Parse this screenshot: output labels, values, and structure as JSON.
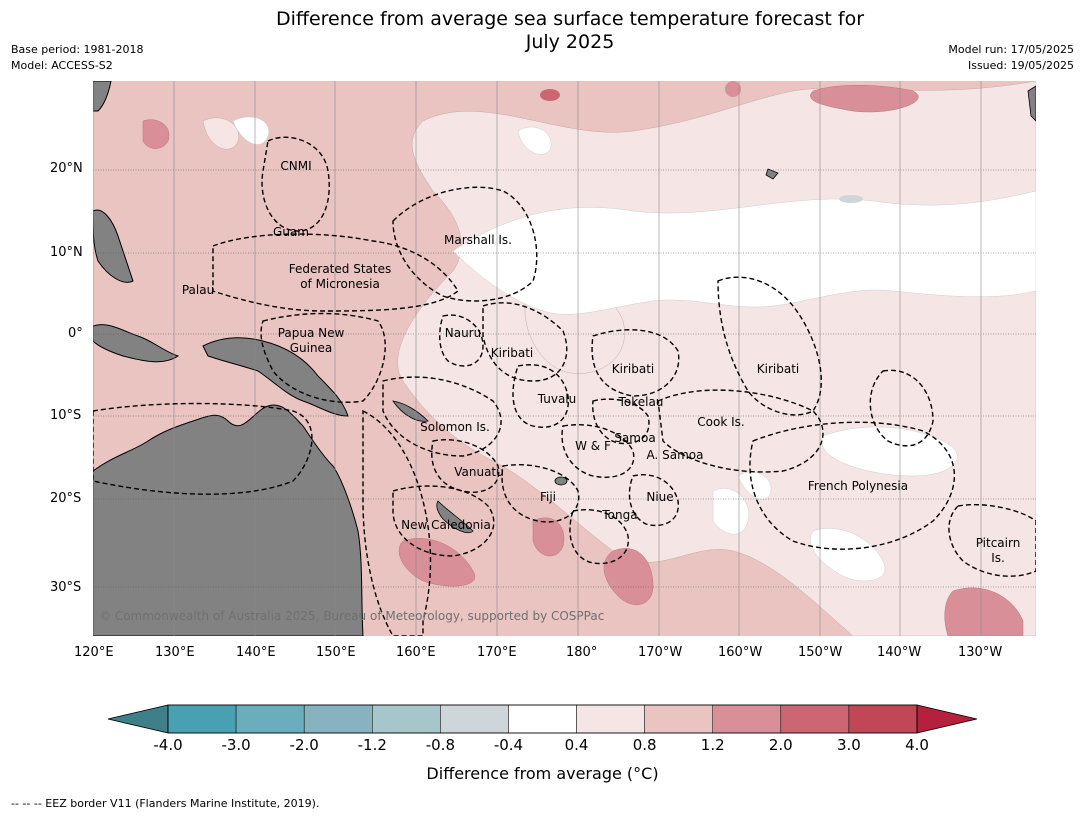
{
  "title_line1": "Difference from average sea surface temperature forecast for",
  "title_line2": "July 2025",
  "meta_left": [
    "Base period: 1981-2018",
    "Model: ACCESS-S2"
  ],
  "meta_right": [
    "Model run: 17/05/2025",
    "Issued: 19/05/2025"
  ],
  "copyright": "© Commonwealth of Australia 2025, Bureau of Meteorology, supported by COSPPac",
  "footnote": "--  --  -- EEZ border V11 (Flanders Marine Institute, 2019).",
  "colors": {
    "land": "#828282",
    "ocean_0_4_0_8": "#f5e6e5",
    "ocean_0_8_1_2": "#e9c4c1",
    "ocean_1_2_2_0": "#d98f98",
    "ocean_2_0_3_0": "#cc6672",
    "ocean_3_0_4_0": "#c14756",
    "cool_minus_0_8": "#cfd6d9"
  },
  "axes": {
    "lon_ticks": [
      "120°E",
      "130°E",
      "140°E",
      "150°E",
      "160°E",
      "170°E",
      "180°",
      "170°W",
      "160°W",
      "150°W",
      "140°W",
      "130°W"
    ],
    "lat_ticks": [
      "20°N",
      "10°N",
      "0°",
      "10°S",
      "20°S",
      "30°S"
    ]
  },
  "region_labels": [
    {
      "text": "CNMI"
    },
    {
      "text": "Guam"
    },
    {
      "text": "Marshall Is."
    },
    {
      "text": "Federated States"
    },
    {
      "text": "of Micronesia"
    },
    {
      "text": "Palau"
    },
    {
      "text": "Papua New"
    },
    {
      "text": "Guinea"
    },
    {
      "text": "Nauru"
    },
    {
      "text": "Kiribati"
    },
    {
      "text": "Kiribati"
    },
    {
      "text": "Kiribati"
    },
    {
      "text": "Tuvalu"
    },
    {
      "text": "Tokelau"
    },
    {
      "text": "Solomon Is."
    },
    {
      "text": "Cook Is."
    },
    {
      "text": "Samoa"
    },
    {
      "text": "W & F"
    },
    {
      "text": "A. Samoa"
    },
    {
      "text": "Vanuatu"
    },
    {
      "text": "Fiji"
    },
    {
      "text": "Niue"
    },
    {
      "text": "French Polynesia"
    },
    {
      "text": "Tonga"
    },
    {
      "text": "New Caledonia"
    },
    {
      "text": "Pitcairn"
    },
    {
      "text": "Is."
    }
  ],
  "colorbar": {
    "title": "Difference from average (°C)",
    "labels": [
      "-4.0",
      "-3.0",
      "-2.0",
      "-1.2",
      "-0.8",
      "-0.4",
      "0.4",
      "0.8",
      "1.2",
      "2.0",
      "3.0",
      "4.0"
    ],
    "colors": [
      "#3f7f8a",
      "#4aa0b3",
      "#6aaebd",
      "#87b3c1",
      "#a7c6cb",
      "#cfd6d9",
      "#ffffff",
      "#f5e6e5",
      "#e9c4c1",
      "#d98f98",
      "#cc6672",
      "#c14756",
      "#b5203c"
    ]
  }
}
